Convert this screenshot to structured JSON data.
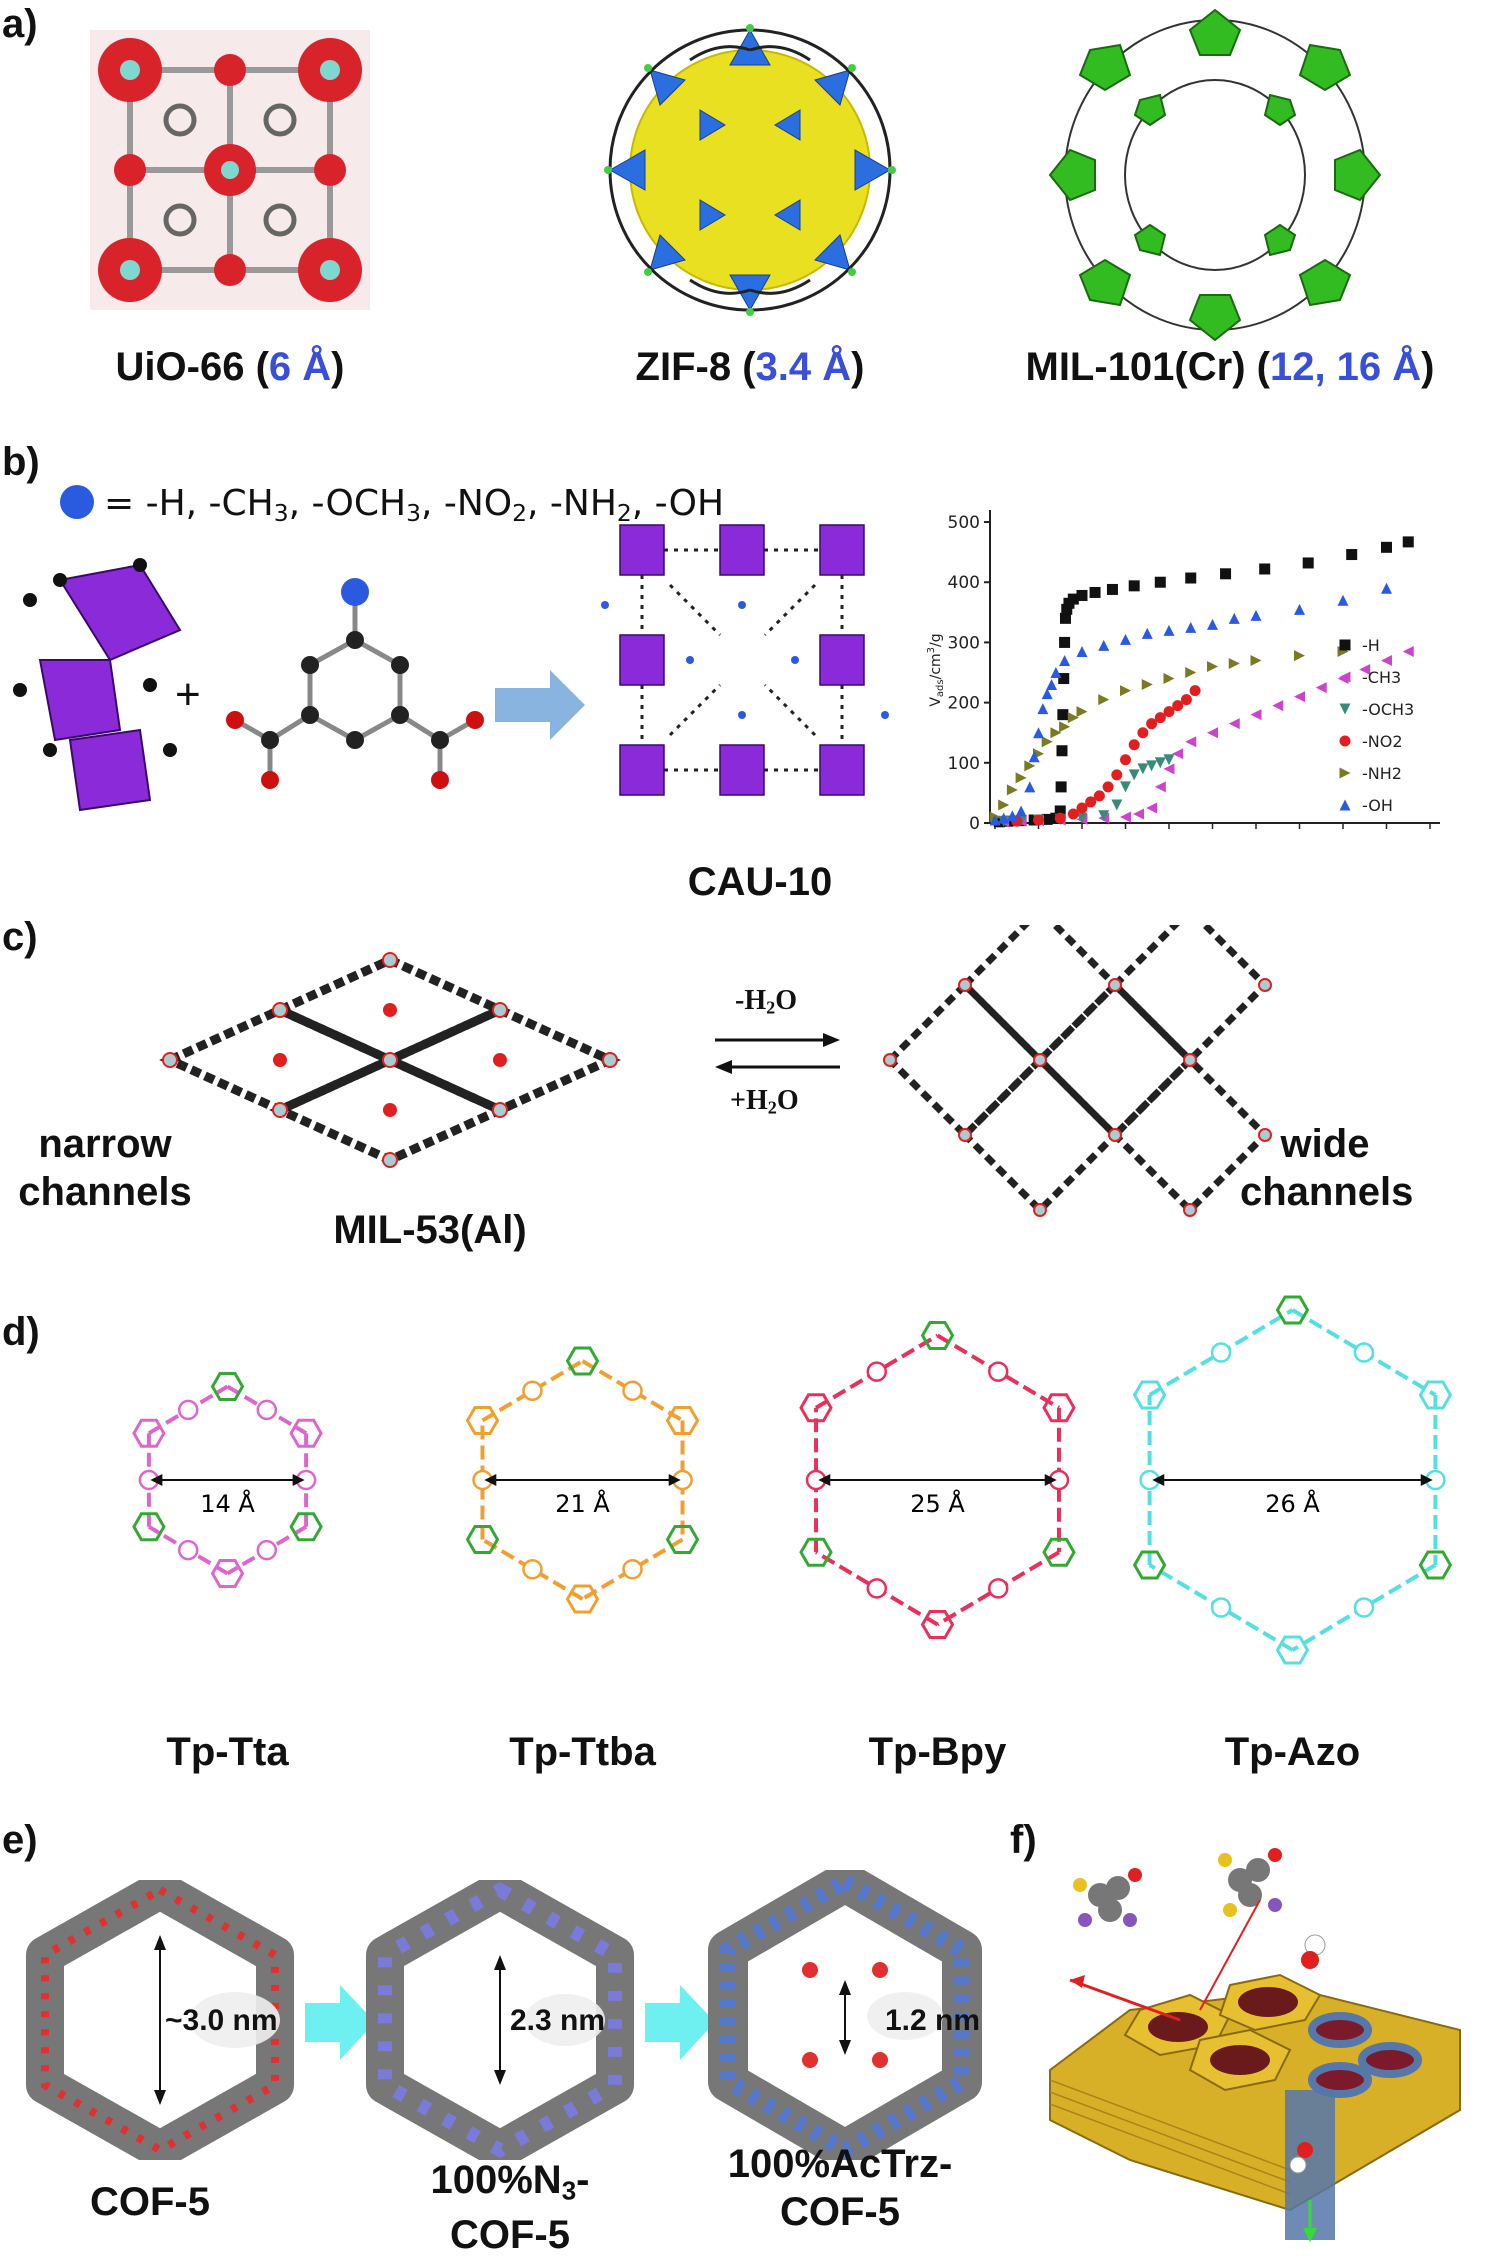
{
  "panels": {
    "a": "a)",
    "b": "b)",
    "c": "c)",
    "d": "d)",
    "e": "e)",
    "f": "f)"
  },
  "panel_a": {
    "uio66": {
      "name": "UiO-66 (",
      "pore": "6 Å",
      "close": ")"
    },
    "zif8": {
      "name": "ZIF-8 (",
      "pore": "3.4 Å",
      "close": ")"
    },
    "mil101": {
      "name": "MIL-101(Cr) (",
      "pore": "12, 16 Å",
      "close": ")"
    }
  },
  "panel_b": {
    "substituents_prefix": "= -H, -CH",
    "substituents_html_parts": [
      "= -H, -CH",
      "3",
      ", -OCH",
      "3",
      ", -NO",
      "2",
      ", -NH",
      "2",
      ", -OH"
    ],
    "plus": "+",
    "framework_label": "CAU-10"
  },
  "chart_data": {
    "type": "scatter",
    "title": "",
    "xlabel": "",
    "ylabel": "Vads/cm3/g",
    "ylim": [
      0,
      520
    ],
    "yticks": [
      "0",
      "100",
      "200",
      "300",
      "400",
      "500"
    ],
    "legend_position": "right",
    "series": [
      {
        "name": "-H",
        "marker": "square",
        "color": "#111111",
        "x": [
          0.01,
          0.03,
          0.06,
          0.09,
          0.12,
          0.14,
          0.15,
          0.152,
          0.154,
          0.156,
          0.158,
          0.16,
          0.162,
          0.165,
          0.17,
          0.18,
          0.2,
          0.23,
          0.27,
          0.32,
          0.38,
          0.45,
          0.53,
          0.62,
          0.72,
          0.82,
          0.9,
          0.95
        ],
        "y": [
          2,
          3,
          4,
          5,
          6,
          8,
          20,
          60,
          120,
          180,
          240,
          300,
          340,
          355,
          365,
          372,
          378,
          383,
          388,
          394,
          400,
          407,
          414,
          422,
          432,
          446,
          458,
          467
        ]
      },
      {
        "name": "-CH3",
        "marker": "triangle-left",
        "color": "#cc44cc",
        "x": [
          0.02,
          0.06,
          0.1,
          0.15,
          0.2,
          0.25,
          0.3,
          0.33,
          0.36,
          0.38,
          0.4,
          0.42,
          0.45,
          0.5,
          0.55,
          0.6,
          0.65,
          0.7,
          0.75,
          0.8,
          0.85,
          0.9,
          0.95
        ],
        "y": [
          2,
          3,
          4,
          5,
          6,
          8,
          10,
          15,
          25,
          60,
          90,
          115,
          135,
          150,
          165,
          180,
          195,
          210,
          225,
          240,
          255,
          270,
          285
        ]
      },
      {
        "name": "-OCH3",
        "marker": "triangle-down",
        "color": "#3a8a7a",
        "x": [
          0.02,
          0.06,
          0.1,
          0.15,
          0.2,
          0.25,
          0.28,
          0.3,
          0.32,
          0.34,
          0.36,
          0.38,
          0.4
        ],
        "y": [
          3,
          4,
          5,
          6,
          8,
          12,
          30,
          60,
          80,
          90,
          95,
          100,
          105
        ]
      },
      {
        "name": "-NO2",
        "marker": "circle",
        "color": "#e02020",
        "x": [
          0.05,
          0.1,
          0.15,
          0.18,
          0.2,
          0.22,
          0.24,
          0.26,
          0.28,
          0.3,
          0.32,
          0.34,
          0.36,
          0.38,
          0.4,
          0.42,
          0.44,
          0.46
        ],
        "y": [
          3,
          5,
          8,
          15,
          25,
          35,
          45,
          60,
          80,
          105,
          130,
          150,
          165,
          175,
          185,
          195,
          205,
          220
        ]
      },
      {
        "name": "-NH2",
        "marker": "triangle-right",
        "color": "#7a7a22",
        "x": [
          0.0,
          0.02,
          0.04,
          0.06,
          0.08,
          0.1,
          0.12,
          0.14,
          0.16,
          0.18,
          0.2,
          0.25,
          0.3,
          0.35,
          0.4,
          0.45,
          0.5,
          0.55,
          0.6,
          0.7,
          0.8
        ],
        "y": [
          10,
          30,
          55,
          75,
          95,
          115,
          135,
          150,
          160,
          175,
          185,
          205,
          220,
          230,
          240,
          250,
          260,
          265,
          270,
          278,
          285
        ]
      },
      {
        "name": "-OH",
        "marker": "triangle-up",
        "color": "#2a5ae0",
        "x": [
          0.0,
          0.02,
          0.04,
          0.06,
          0.08,
          0.09,
          0.1,
          0.11,
          0.12,
          0.13,
          0.14,
          0.16,
          0.2,
          0.25,
          0.3,
          0.35,
          0.4,
          0.45,
          0.5,
          0.55,
          0.6,
          0.7,
          0.8,
          0.9
        ],
        "y": [
          5,
          8,
          12,
          20,
          60,
          110,
          150,
          190,
          215,
          230,
          250,
          270,
          285,
          295,
          305,
          315,
          320,
          325,
          330,
          340,
          345,
          355,
          370,
          390
        ]
      }
    ]
  },
  "panel_c": {
    "left_label": "narrow channels",
    "left_line1": "narrow",
    "left_line2": "channels",
    "right_line1": "wide",
    "right_line2": "channels",
    "framework_label": "MIL-53(Al)",
    "arrow_top": "-H",
    "arrow_top_sub": "2",
    "arrow_top_end": "O",
    "arrow_bottom": "+H",
    "arrow_bottom_sub": "2",
    "arrow_bottom_end": "O"
  },
  "panel_d": {
    "frameworks": [
      {
        "name": "Tp-Tta",
        "size": "14 Å",
        "color": "#dd66cc"
      },
      {
        "name": "Tp-Ttba",
        "size": "21 Å",
        "color": "#f0a030"
      },
      {
        "name": "Tp-Bpy",
        "size": "25 Å",
        "color": "#e8305a"
      },
      {
        "name": "Tp-Azo",
        "size": "26 Å",
        "color": "#55e0e0"
      }
    ]
  },
  "panel_e": {
    "cof5": {
      "label": "COF-5",
      "pore": "~3.0 nm"
    },
    "n3cof5": {
      "label_line1": "100%N",
      "label_sub": "3",
      "label_line1_end": "-",
      "label_line2": "COF-5",
      "pore": "2.3 nm"
    },
    "actrz": {
      "label_line1": "100%AcTrz-",
      "label_line2": "COF-5",
      "pore": "1.2 nm"
    }
  },
  "colors": {
    "blue_text": "#3a4fd8",
    "arrow_blue": "#8ab4e0",
    "arrow_cyan": "#6ef0f0",
    "yellow_sphere": "#e8e020",
    "green_poly": "#33bb22",
    "purple_poly": "#8a2ad8",
    "honeycomb": "#e6c030"
  }
}
